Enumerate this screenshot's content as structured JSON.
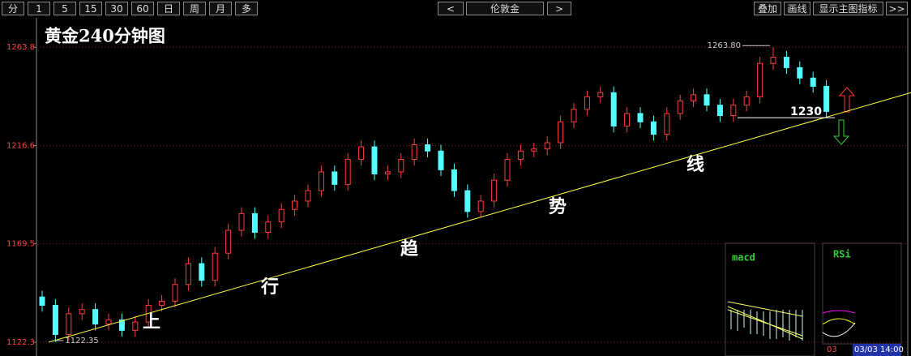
{
  "toolbar": {
    "periods": [
      "分",
      "1",
      "5",
      "15",
      "30",
      "60",
      "日",
      "周",
      "月",
      "多"
    ],
    "prev": "<",
    "symbol": "伦敦金",
    "next": ">",
    "actions": [
      "叠加",
      "画线",
      "显示主图指标",
      ">>"
    ]
  },
  "chart_data": {
    "type": "candlestick",
    "title": "黄金240分钟图",
    "open": [
      1144,
      1140,
      1126,
      1136,
      1138,
      1131,
      1133,
      1128,
      1132,
      1140,
      1142,
      1150,
      1160,
      1152,
      1165,
      1176,
      1184,
      1175,
      1180,
      1186,
      1190,
      1195,
      1204,
      1198,
      1210,
      1216,
      1203,
      1204,
      1210,
      1217,
      1214,
      1205,
      1195,
      1185,
      1190,
      1200,
      1210,
      1214,
      1215,
      1218,
      1228,
      1234,
      1240,
      1242,
      1226,
      1232,
      1228,
      1222,
      1232,
      1238,
      1241,
      1236,
      1231,
      1236,
      1240,
      1256,
      1259,
      1254,
      1249,
      1245
    ],
    "high": [
      1147,
      1143,
      1139,
      1141,
      1141,
      1136,
      1136,
      1135,
      1143,
      1145,
      1153,
      1163,
      1163,
      1168,
      1179,
      1187,
      1187,
      1183,
      1189,
      1193,
      1198,
      1207,
      1207,
      1213,
      1219,
      1219,
      1207,
      1213,
      1220,
      1220,
      1217,
      1208,
      1198,
      1193,
      1203,
      1213,
      1217,
      1218,
      1221,
      1231,
      1237,
      1243,
      1245,
      1245,
      1235,
      1235,
      1231,
      1235,
      1241,
      1244,
      1244,
      1239,
      1239,
      1243,
      1259,
      1263.8,
      1262,
      1257,
      1252,
      1248
    ],
    "low": [
      1137,
      1122.35,
      1123,
      1133,
      1128,
      1128,
      1125,
      1125,
      1129,
      1137,
      1139,
      1147,
      1149,
      1149,
      1162,
      1173,
      1172,
      1172,
      1177,
      1183,
      1187,
      1192,
      1195,
      1195,
      1207,
      1200,
      1200,
      1201,
      1207,
      1211,
      1202,
      1192,
      1182,
      1182,
      1187,
      1197,
      1207,
      1211,
      1212,
      1215,
      1225,
      1231,
      1237,
      1223,
      1223,
      1225,
      1219,
      1219,
      1229,
      1235,
      1233,
      1228,
      1228,
      1233,
      1237,
      1253,
      1251,
      1246,
      1242,
      1230
    ],
    "close": [
      1140,
      1126,
      1136,
      1138,
      1131,
      1133,
      1128,
      1132,
      1140,
      1142,
      1150,
      1160,
      1152,
      1165,
      1176,
      1184,
      1175,
      1180,
      1186,
      1190,
      1195,
      1204,
      1198,
      1210,
      1216,
      1203,
      1204,
      1210,
      1217,
      1214,
      1205,
      1195,
      1185,
      1190,
      1200,
      1210,
      1214,
      1215,
      1218,
      1228,
      1234,
      1240,
      1242,
      1226,
      1232,
      1228,
      1222,
      1232,
      1238,
      1241,
      1236,
      1231,
      1236,
      1240,
      1256,
      1259,
      1254,
      1249,
      1245,
      1233
    ],
    "up_color": "#ff3c3c",
    "down_color": "#54ffff",
    "ylim": [
      1115.7,
      1277.1
    ],
    "yticks": [
      1122.3,
      1169.5,
      1216.6,
      1263.8
    ],
    "grid": true,
    "high_label": "1263.80",
    "low_label": "1122.35",
    "trendline": {
      "values": [
        1122.3,
        1242.0
      ],
      "color": "#ffff40"
    },
    "trend_text": [
      "上",
      "行",
      "趋",
      "势",
      "线"
    ],
    "level": {
      "value": 1230
    },
    "indicators": [
      "macd",
      "RSi"
    ],
    "time_labels": [
      "03",
      "03/03 14:00"
    ]
  }
}
